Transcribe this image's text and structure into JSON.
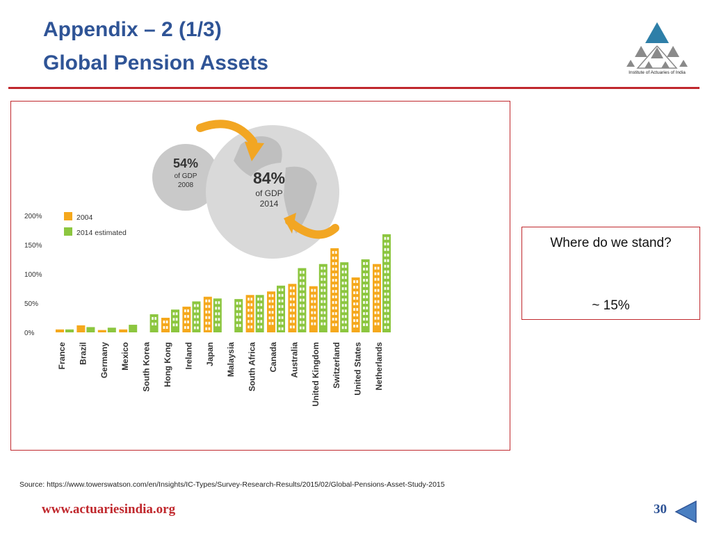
{
  "header": {
    "title_line1": "Appendix – 2 (1/3)",
    "title_line2": "Global Pension Assets",
    "logo_caption": "Institute of Actuaries of India"
  },
  "globe": {
    "small_value": "54%",
    "small_sub": "of GDP",
    "small_year": "2008",
    "large_value": "84%",
    "large_sub": "of GDP",
    "large_year": "2014"
  },
  "callout": {
    "question": "Where do we stand?",
    "answer": "~ 15%"
  },
  "footer": {
    "source": "Source: https://www.towerswatson.com/en/Insights/IC-Types/Survey-Research-Results/2015/02/Global-Pensions-Asset-Study-2015",
    "url": "www.actuariesindia.org",
    "page_number": "30"
  },
  "colors": {
    "title": "#2f5496",
    "accent_red": "#c0282d",
    "bar_2004": "#f5a81c",
    "bar_2014": "#8cc63f",
    "globe_grey": "#d4d4d4",
    "arrow_orange": "#f2a623"
  },
  "chart_data": {
    "type": "bar",
    "categories": [
      "France",
      "Brazil",
      "Germany",
      "Mexico",
      "South Korea",
      "Hong Kong",
      "Ireland",
      "Japan",
      "Malaysia",
      "South Africa",
      "Canada",
      "Australia",
      "United Kingdom",
      "Switzerland",
      "United States",
      "Netherlands"
    ],
    "series": [
      {
        "name": "2004",
        "values": [
          5,
          12,
          4,
          5,
          0,
          25,
          44,
          61,
          0,
          64,
          70,
          83,
          79,
          144,
          94,
          117
        ],
        "color": "#f5a81c"
      },
      {
        "name": "2014 estimated",
        "values": [
          5,
          9,
          8,
          13,
          31,
          39,
          53,
          58,
          57,
          64,
          80,
          110,
          117,
          120,
          125,
          168
        ],
        "color": "#8cc63f"
      }
    ],
    "yticks": [
      "0%",
      "50%",
      "100%",
      "150%",
      "200%"
    ],
    "ylim": [
      0,
      200
    ],
    "legend": "top-left"
  }
}
